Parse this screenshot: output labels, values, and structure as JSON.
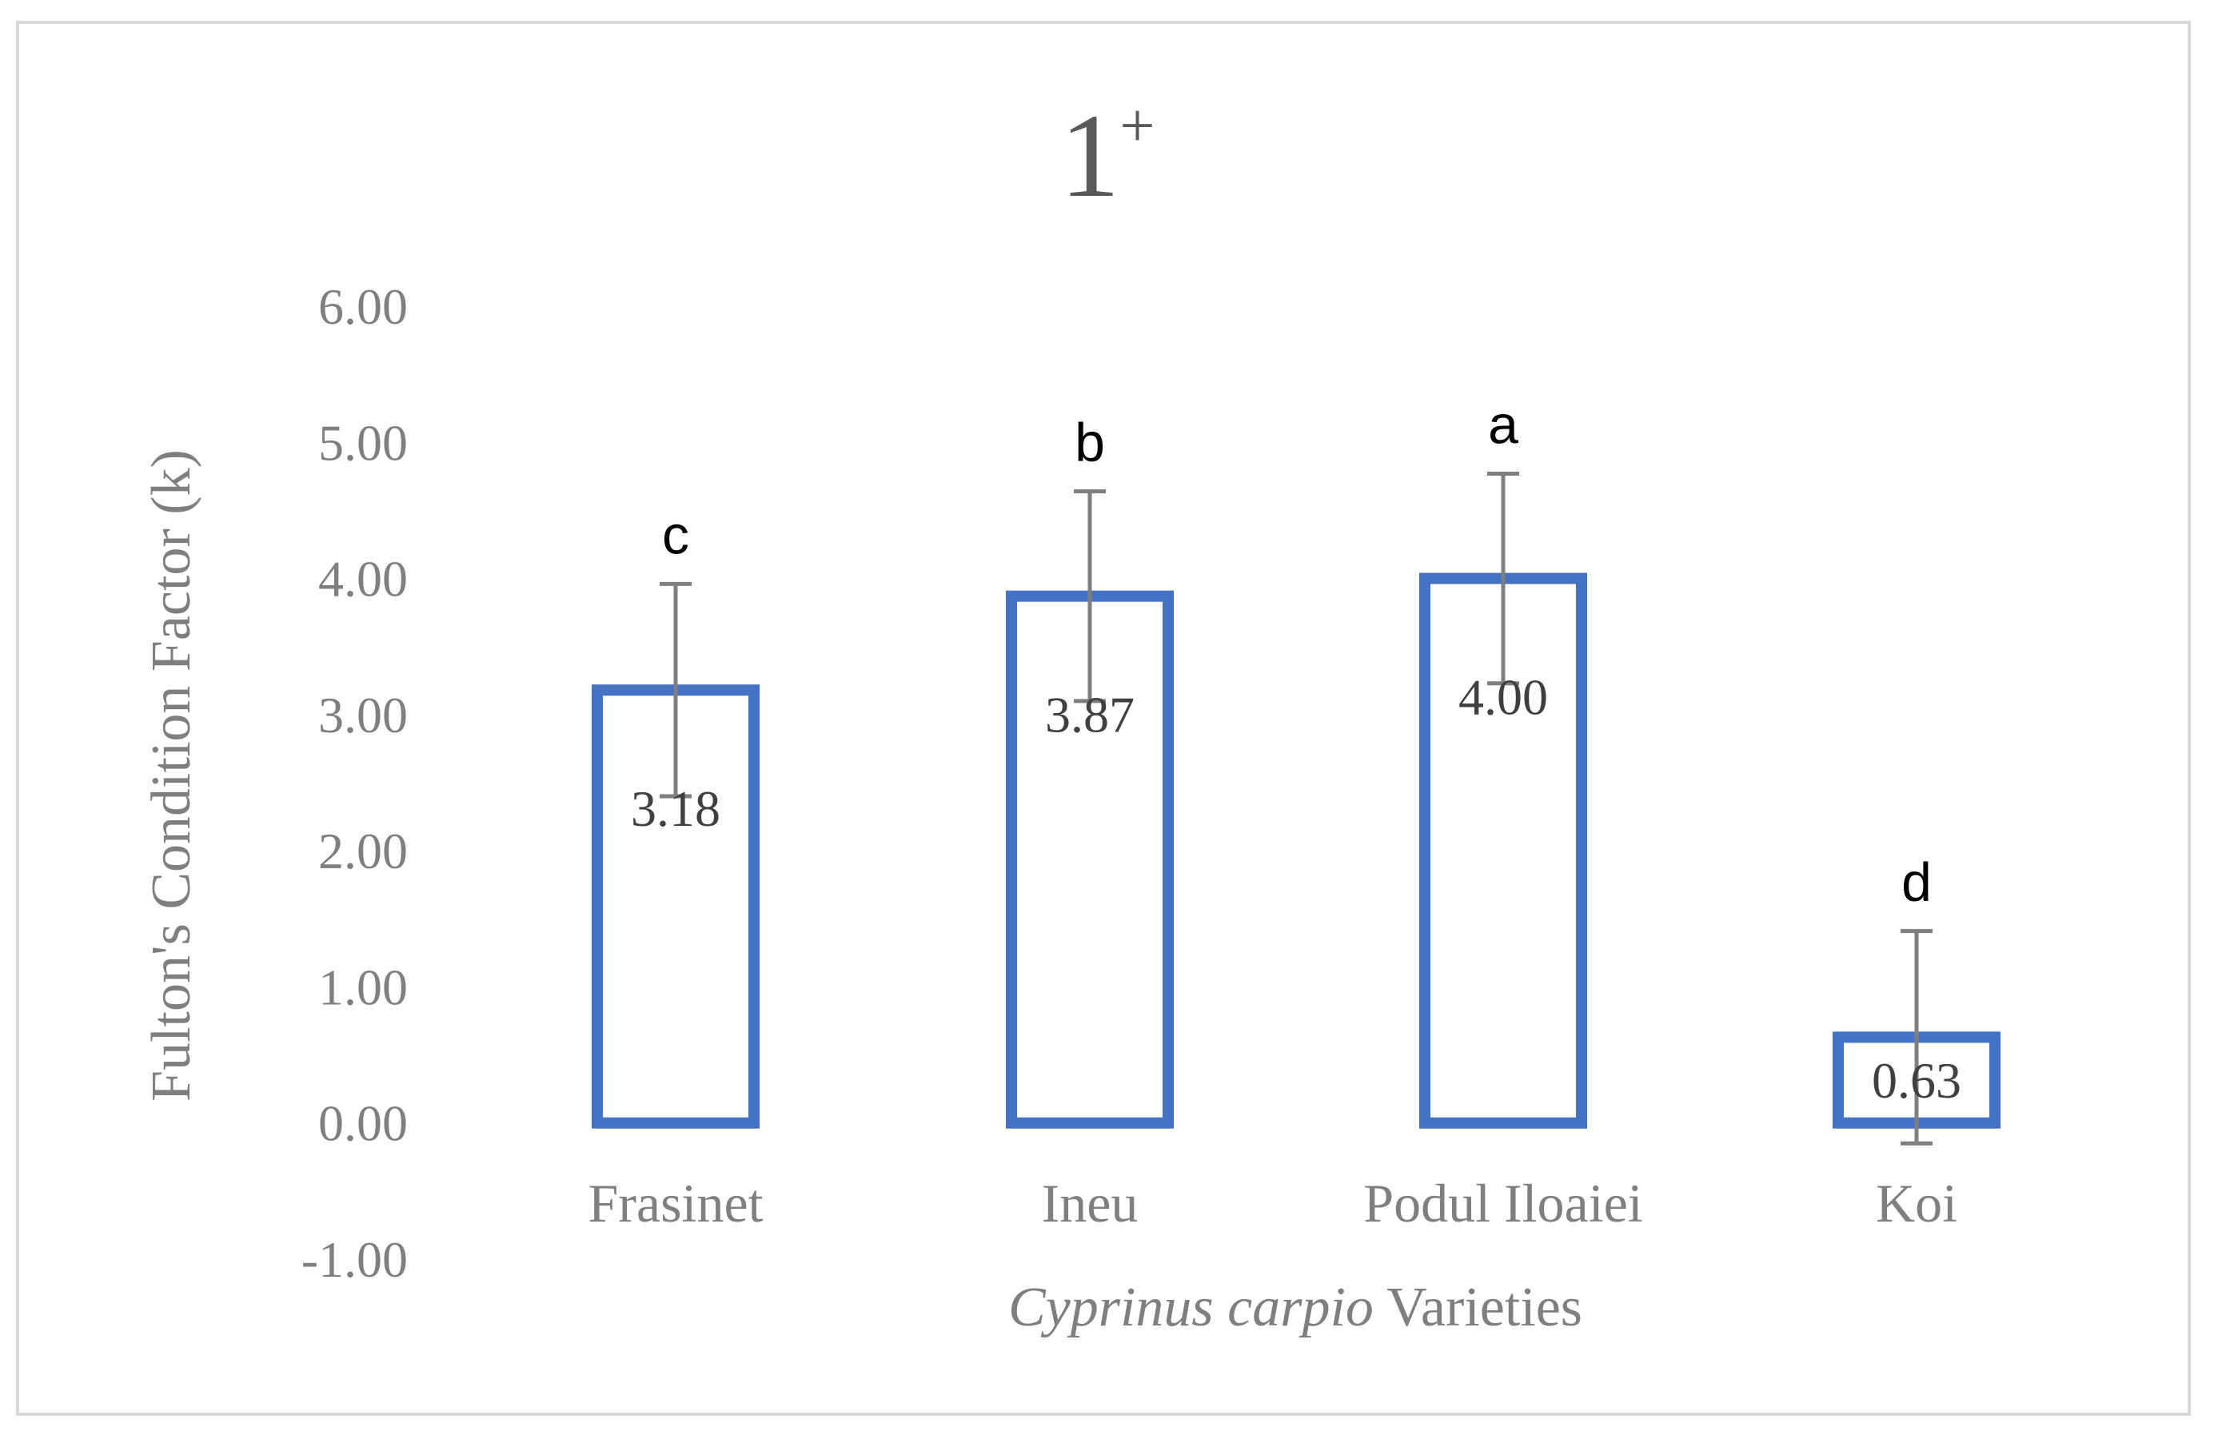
{
  "chart_data": {
    "type": "bar",
    "title": "1",
    "title_superscript": "+",
    "xlabel_italic": "Cyprinus carpio",
    "xlabel_rest": " Varieties",
    "ylabel": "Fulton's Condition Factor (k)",
    "categories": [
      "Frasinet",
      "Ineu",
      "Podul Iloaiei",
      "Koi"
    ],
    "values": [
      3.18,
      3.87,
      4.0,
      0.63
    ],
    "value_labels": [
      "3.18",
      "3.87",
      "4.00",
      "0.63"
    ],
    "error_high": [
      3.96,
      4.64,
      4.77,
      1.41
    ],
    "error_low": [
      2.4,
      3.1,
      3.23,
      -0.15
    ],
    "significance_letters": [
      "c",
      "b",
      "a",
      "d"
    ],
    "ylim": [
      -1.0,
      6.0
    ],
    "yticks": [
      -1.0,
      0.0,
      1.0,
      2.0,
      3.0,
      4.0,
      5.0,
      6.0
    ],
    "ytick_labels": [
      "-1.00",
      "0.00",
      "1.00",
      "2.00",
      "3.00",
      "4.00",
      "5.00",
      "6.00"
    ],
    "grid": false,
    "legend": "none",
    "colors": {
      "bar_outline": "#4472c4",
      "error_bar": "#7f7f7f",
      "text": "#7f7f7f",
      "data_label": "#404040",
      "frame": "#d9d9d9"
    }
  }
}
